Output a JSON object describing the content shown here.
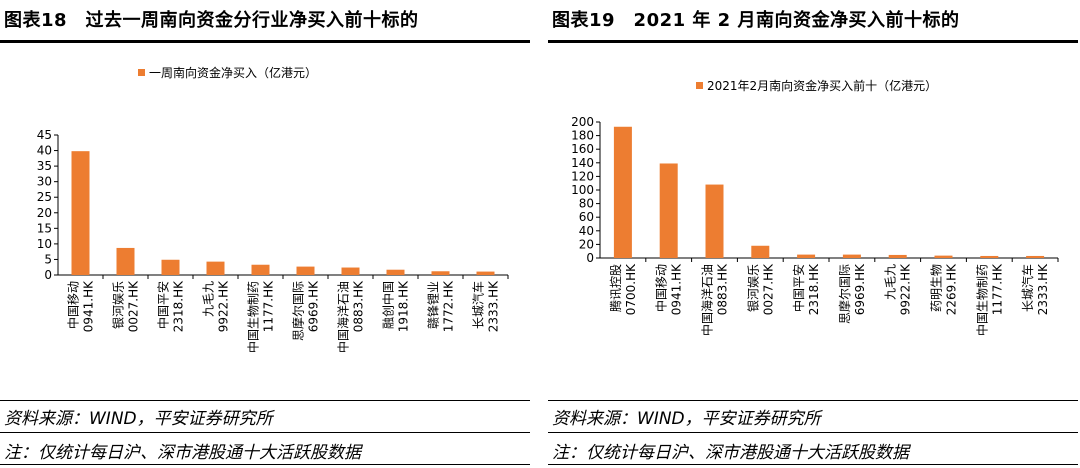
{
  "panels": [
    {
      "title": "图表18　过去一周南向资金分行业净买入前十标的",
      "source": "资料来源：WIND，平安证券研究所",
      "note": "注：仅统计每日沪、深市港股通十大活跃股数据"
    },
    {
      "title": "图表19　2021 年 2 月南向资金净买入前十标的",
      "source": "资料来源：WIND，平安证券研究所",
      "note": "注：仅统计每日沪、深市港股通十大活跃股数据"
    }
  ],
  "chart_data": [
    {
      "type": "bar",
      "legend": "一周南向资金净买入（亿港元）",
      "categories": [
        [
          "中国移动",
          "0941.HK"
        ],
        [
          "银河娱乐",
          "0027.HK"
        ],
        [
          "中国平安",
          "2318.HK"
        ],
        [
          "九毛九",
          "9922.HK"
        ],
        [
          "中国生物制药",
          "1177.HK"
        ],
        [
          "思摩尔国际",
          "6969.HK"
        ],
        [
          "中国海洋石油",
          "0883.HK"
        ],
        [
          "融创中国",
          "1918.HK"
        ],
        [
          "赣锋锂业",
          "1772.HK"
        ],
        [
          "长城汽车",
          "2333.HK"
        ]
      ],
      "values": [
        39.8,
        8.7,
        4.9,
        4.3,
        3.3,
        2.7,
        2.4,
        1.7,
        1.2,
        1.1
      ],
      "ylim": [
        0,
        45
      ],
      "ytick_step": 5,
      "color": "#ED7D31"
    },
    {
      "type": "bar",
      "legend": "2021年2月南向资金净买入前十（亿港元）",
      "categories": [
        [
          "腾讯控股",
          "0700.HK"
        ],
        [
          "中国移动",
          "0941.HK"
        ],
        [
          "中国海洋石油",
          "0883.HK"
        ],
        [
          "银河娱乐",
          "0027.HK"
        ],
        [
          "中国平安",
          "2318.HK"
        ],
        [
          "思摩尔国际",
          "6969.HK"
        ],
        [
          "九毛九",
          "9922.HK"
        ],
        [
          "药明生物",
          "2269.HK"
        ],
        [
          "中国生物制药",
          "1177.HK"
        ],
        [
          "长城汽车",
          "2333.HK"
        ]
      ],
      "values": [
        193,
        139,
        108,
        18,
        5,
        5,
        4.5,
        3.5,
        3,
        3
      ],
      "ylim": [
        0,
        200
      ],
      "ytick_step": 20,
      "color": "#ED7D31"
    }
  ]
}
